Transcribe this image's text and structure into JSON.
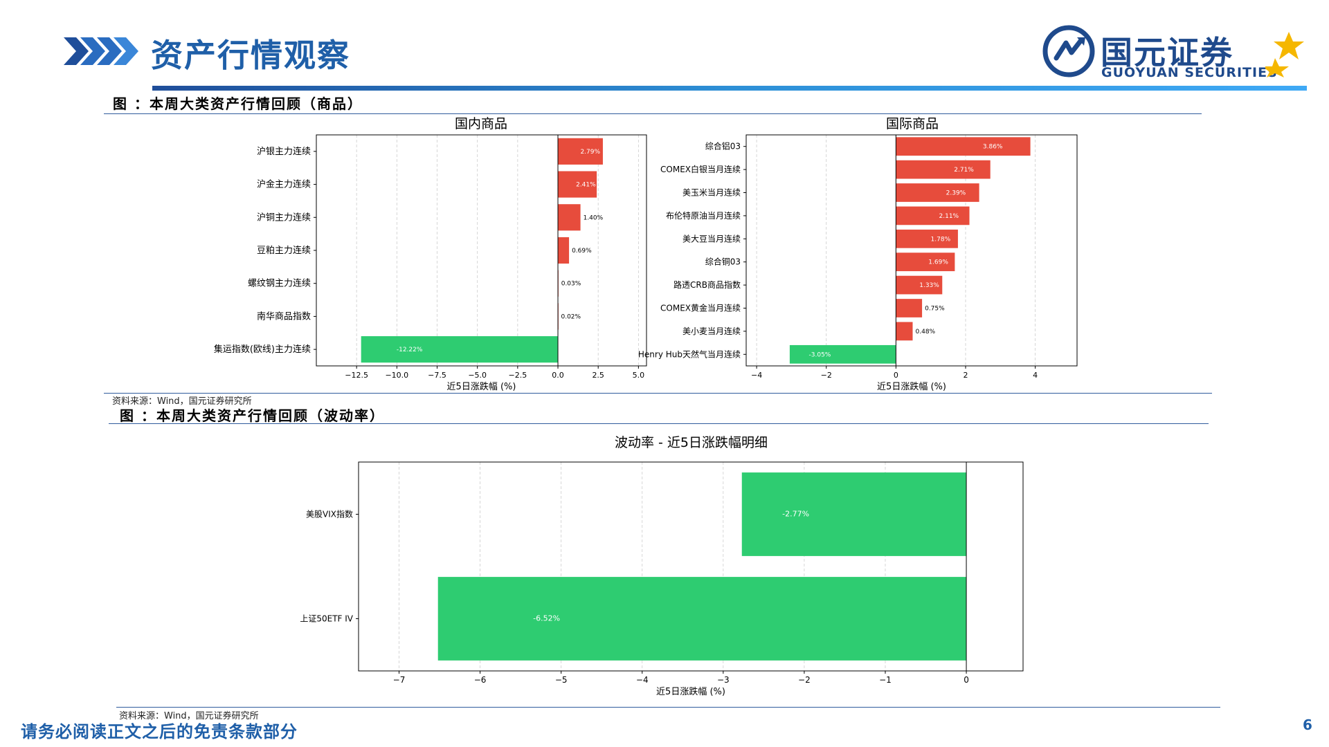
{
  "header": {
    "title": "资产行情观察",
    "logo_cn": "国元证券",
    "logo_en": "GUOYUAN SECURITIES"
  },
  "sections": [
    {
      "title": "图 ：本周大类资产行情回顾（商品）",
      "source": "资料来源：Wind，国元证券研究所"
    },
    {
      "title": "图 ：本周大类资产行情回顾（波动率）",
      "source": "资料来源：Wind，国元证券研究所"
    }
  ],
  "footer": {
    "disclaimer": "请务必阅读正文之后的免责条款部分",
    "page": "6"
  },
  "colors": {
    "positive": "#e74c3c",
    "negative": "#2ecc71",
    "brand": "#1f5fa8"
  },
  "chart_data": [
    {
      "type": "bar",
      "orientation": "horizontal",
      "title": "国内商品",
      "xlabel": "近5日涨跌幅 (%)",
      "xlim": [
        -15,
        5.5
      ],
      "xticks": [
        -12.5,
        -10.0,
        -7.5,
        -5.0,
        -2.5,
        0.0,
        2.5,
        5.0
      ],
      "xtick_labels": [
        "−12.5",
        "−10.0",
        "−7.5",
        "−5.0",
        "−2.5",
        "0.0",
        "2.5",
        "5.0"
      ],
      "categories": [
        "沪银主力连续",
        "沪金主力连续",
        "沪铜主力连续",
        "豆粕主力连续",
        "螺纹钢主力连续",
        "南华商品指数",
        "集运指数(欧线)主力连续"
      ],
      "values": [
        2.79,
        2.41,
        1.4,
        0.69,
        0.03,
        0.02,
        -12.22
      ],
      "labels": [
        "2.79%",
        "2.41%",
        "1.40%",
        "0.69%",
        "0.03%",
        "0.02%",
        "-12.22%"
      ],
      "grid": true
    },
    {
      "type": "bar",
      "orientation": "horizontal",
      "title": "国际商品",
      "xlabel": "近5日涨跌幅 (%)",
      "xlim": [
        -4.3,
        5.2
      ],
      "xticks": [
        -4,
        -2,
        0,
        2,
        4
      ],
      "xtick_labels": [
        "−4",
        "−2",
        "0",
        "2",
        "4"
      ],
      "categories": [
        "综合铝03",
        "COMEX白银当月连续",
        "美玉米当月连续",
        "布伦特原油当月连续",
        "美大豆当月连续",
        "综合铜03",
        "路透CRB商品指数",
        "COMEX黄金当月连续",
        "美小麦当月连续",
        "Henry Hub天然气当月连续"
      ],
      "values": [
        3.86,
        2.71,
        2.39,
        2.11,
        1.78,
        1.69,
        1.33,
        0.75,
        0.48,
        -3.05
      ],
      "labels": [
        "3.86%",
        "2.71%",
        "2.39%",
        "2.11%",
        "1.78%",
        "1.69%",
        "1.33%",
        "0.75%",
        "0.48%",
        "-3.05%"
      ],
      "grid": true
    },
    {
      "type": "bar",
      "orientation": "horizontal",
      "title": "波动率 - 近5日涨跌幅明细",
      "xlabel": "近5日涨跌幅 (%)",
      "xlim": [
        -7.5,
        0.7
      ],
      "xticks": [
        -7,
        -6,
        -5,
        -4,
        -3,
        -2,
        -1,
        0
      ],
      "xtick_labels": [
        "−7",
        "−6",
        "−5",
        "−4",
        "−3",
        "−2",
        "−1",
        "0"
      ],
      "categories": [
        "美股VIX指数",
        "上证50ETF IV"
      ],
      "values": [
        -2.77,
        -6.52
      ],
      "labels": [
        "-2.77%",
        "-6.52%"
      ],
      "grid": true
    }
  ]
}
